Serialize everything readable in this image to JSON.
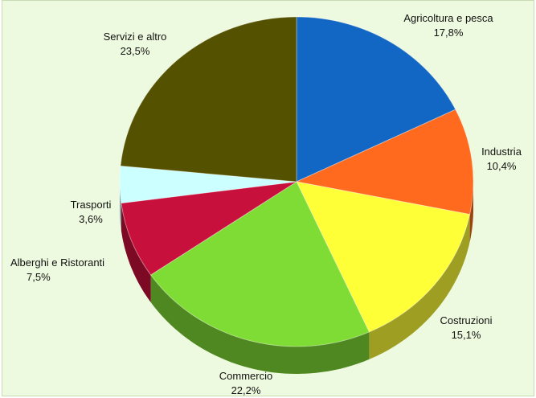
{
  "chart_data": {
    "type": "pie",
    "start": "top",
    "direction": "clockwise",
    "three_d": true,
    "slices": [
      {
        "label": "Agricoltura e pesca",
        "value_label": "17,8%",
        "value": 17.8,
        "color": "#1266c4"
      },
      {
        "label": "Industria",
        "value_label": "10,4%",
        "value": 10.4,
        "color": "#ff6a1e"
      },
      {
        "label": "Costruzioni",
        "value_label": "15,1%",
        "value": 15.1,
        "color": "#ffff38"
      },
      {
        "label": "Commercio",
        "value_label": "22,2%",
        "value": 22.2,
        "color": "#7fdc34"
      },
      {
        "label": "Alberghi e Ristoranti",
        "value_label": "7,5%",
        "value": 7.5,
        "color": "#c8103c"
      },
      {
        "label": "Trasporti",
        "value_label": "3,6%",
        "value": 3.6,
        "color": "#ccffff"
      },
      {
        "label": "Servizi e altro",
        "value_label": "23,5%",
        "value": 23.5,
        "color": "#545200"
      }
    ]
  }
}
